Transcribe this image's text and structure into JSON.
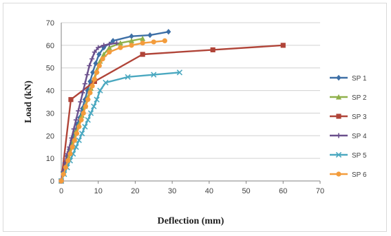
{
  "chart_data": {
    "type": "line",
    "title": "",
    "xlabel": "Deflection (mm)",
    "ylabel": "Load (kN)",
    "xlim": [
      0,
      70
    ],
    "ylim": [
      0,
      70
    ],
    "x_ticks": [
      0,
      10,
      20,
      30,
      40,
      50,
      60,
      70
    ],
    "y_ticks": [
      0,
      10,
      20,
      30,
      40,
      50,
      60,
      70
    ],
    "grid": "horizontal",
    "legend": "right",
    "series": [
      {
        "name": "SP 1",
        "color": "#3d6fa6",
        "marker": "diamond",
        "x": [
          0,
          0.5,
          1,
          1.6,
          2.2,
          2.9,
          3.6,
          4.3,
          5,
          5.7,
          6.4,
          7.1,
          7.8,
          8.5,
          9.3,
          10.2,
          11.5,
          14,
          19,
          24,
          29
        ],
        "y": [
          0,
          4,
          7,
          11,
          14,
          18,
          21,
          25,
          28,
          32,
          36,
          40,
          44,
          48,
          52,
          56,
          59,
          62,
          64,
          64.5,
          66
        ]
      },
      {
        "name": "SP 2",
        "color": "#8fb04a",
        "marker": "triangle",
        "x": [
          0,
          0.6,
          1.2,
          1.9,
          2.6,
          3.3,
          4,
          4.8,
          5.6,
          6.4,
          7.2,
          8,
          8.8,
          9.6,
          10.5,
          11.5,
          13,
          16,
          19,
          22
        ],
        "y": [
          0,
          4,
          8,
          11,
          15,
          18,
          22,
          25,
          29,
          33,
          37,
          41,
          45,
          49,
          53,
          56,
          59,
          61,
          62,
          63
        ]
      },
      {
        "name": "SP 3",
        "color": "#b04438",
        "marker": "square",
        "x": [
          0,
          2.6,
          9,
          22,
          41,
          60
        ],
        "y": [
          0,
          36,
          44,
          56,
          58,
          60
        ]
      },
      {
        "name": "SP 4",
        "color": "#6a4f8c",
        "marker": "cross",
        "x": [
          0,
          0.5,
          1,
          1.6,
          2.2,
          2.8,
          3.4,
          4,
          4.6,
          5.2,
          5.8,
          6.4,
          7,
          7.6,
          8.3,
          9,
          10,
          11.5,
          13,
          15
        ],
        "y": [
          0,
          4,
          8,
          12,
          15,
          19,
          23,
          27,
          31,
          35,
          39,
          43,
          47,
          51,
          54,
          57,
          59,
          60,
          60.5,
          61
        ]
      },
      {
        "name": "SP 5",
        "color": "#4aa8c0",
        "marker": "x",
        "x": [
          0,
          0.8,
          1.6,
          2.4,
          3.2,
          4,
          4.8,
          5.6,
          6.4,
          7.2,
          8,
          8.8,
          9.6,
          10.5,
          12,
          18,
          25,
          32
        ],
        "y": [
          0,
          3,
          6,
          9,
          12,
          15,
          18,
          21,
          24,
          27,
          30,
          33,
          36,
          40,
          43.5,
          46,
          47,
          48
        ]
      },
      {
        "name": "SP 6",
        "color": "#f39c3c",
        "marker": "circle",
        "x": [
          0,
          0.6,
          1.2,
          1.8,
          2.4,
          3,
          3.6,
          4.2,
          4.8,
          5.4,
          6,
          6.6,
          7.2,
          7.8,
          8.4,
          9,
          9.6,
          10.3,
          11.2,
          13,
          16,
          19,
          22,
          25,
          28
        ],
        "y": [
          0,
          3,
          6,
          9,
          12,
          15,
          18,
          21,
          24,
          27,
          30,
          33,
          36,
          39,
          42,
          45,
          48,
          51,
          54,
          57,
          59,
          60,
          61,
          61.5,
          62
        ]
      }
    ]
  }
}
